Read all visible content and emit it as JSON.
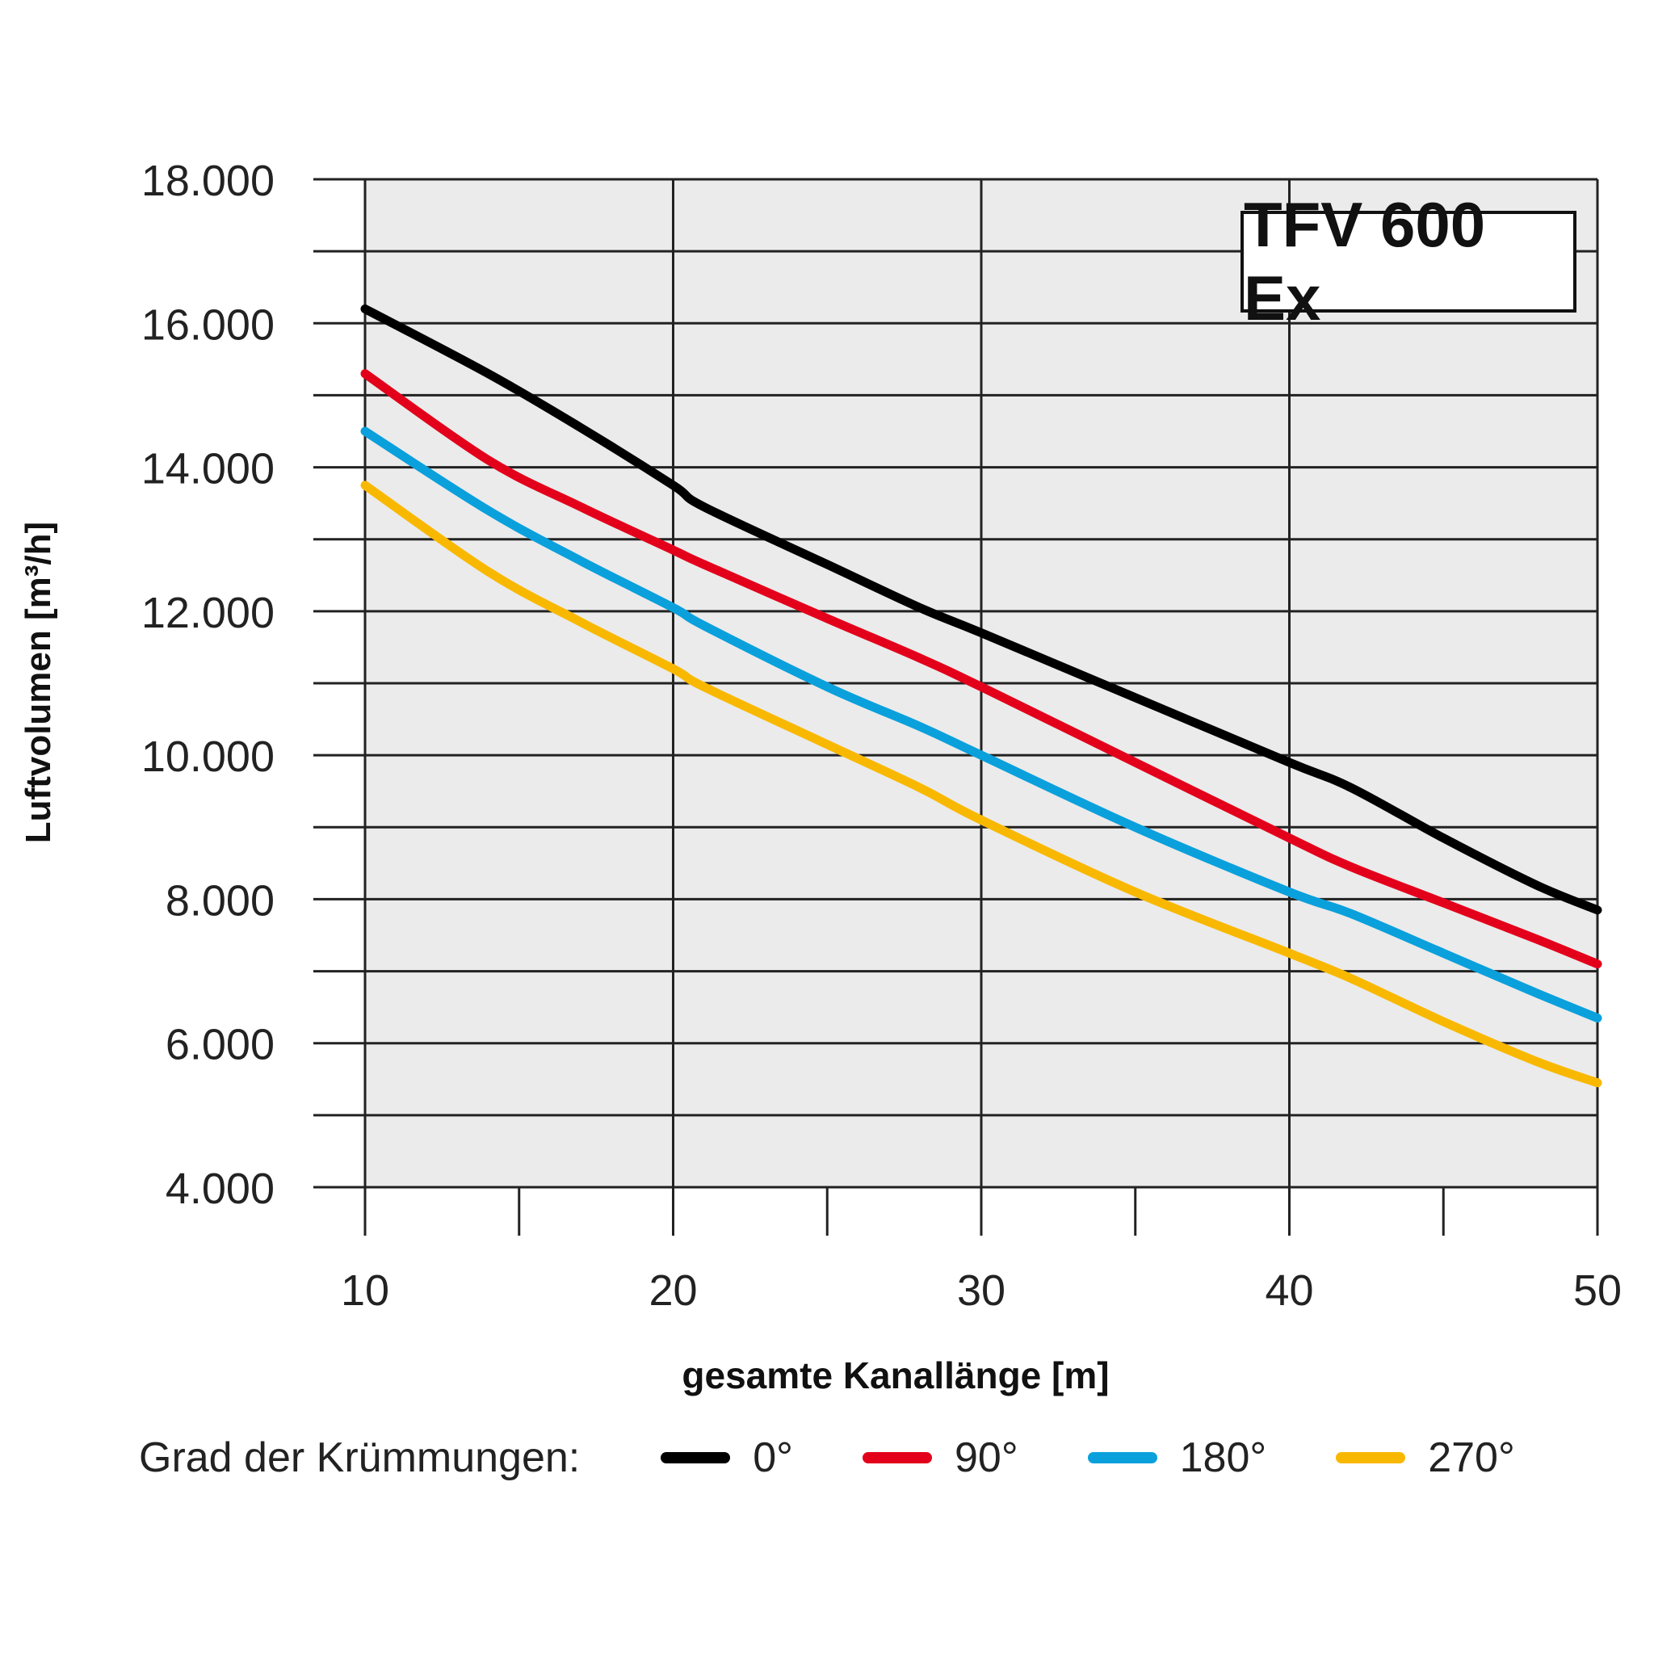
{
  "chart_data": {
    "type": "line",
    "title": "TFV 600 Ex",
    "xlabel": "gesamte Kanallänge [m]",
    "ylabel": "Luftvolumen [m³/h]",
    "xlim": [
      10,
      50
    ],
    "ylim": [
      4000,
      18000
    ],
    "x_ticks": [
      10,
      20,
      30,
      40,
      50
    ],
    "x_tick_labels": [
      "10",
      "20",
      "30",
      "40",
      "50"
    ],
    "y_ticks": [
      4000,
      6000,
      8000,
      10000,
      12000,
      14000,
      16000,
      18000
    ],
    "y_tick_labels": [
      "4.000",
      "6.000",
      "8.000",
      "10.000",
      "12.000",
      "14.000",
      "16.000",
      "18.000"
    ],
    "grid": true,
    "legend": {
      "title": "Grad der Krümmungen:",
      "position": "bottom"
    },
    "x": [
      10,
      14,
      17,
      20,
      21,
      25,
      28,
      30,
      35,
      40,
      42,
      45,
      48,
      50
    ],
    "series": [
      {
        "name": "0°",
        "color": "#000000",
        "values": [
          16200,
          15300,
          14550,
          13750,
          13450,
          12650,
          12050,
          11700,
          10800,
          9900,
          9550,
          8850,
          8200,
          7850
        ]
      },
      {
        "name": "90°",
        "color": "#e3001b",
        "values": [
          15300,
          14100,
          13450,
          12850,
          12650,
          11900,
          11350,
          10950,
          9900,
          8850,
          8450,
          7950,
          7450,
          7100
        ]
      },
      {
        "name": "180°",
        "color": "#0aa0dc",
        "values": [
          14500,
          13400,
          12700,
          12050,
          11800,
          10950,
          10400,
          10000,
          9000,
          8100,
          7800,
          7250,
          6700,
          6350
        ]
      },
      {
        "name": "270°",
        "color": "#f9b800",
        "values": [
          13750,
          12550,
          11850,
          11200,
          10950,
          10150,
          9550,
          9100,
          8100,
          7250,
          6900,
          6300,
          5750,
          5450
        ]
      }
    ]
  }
}
